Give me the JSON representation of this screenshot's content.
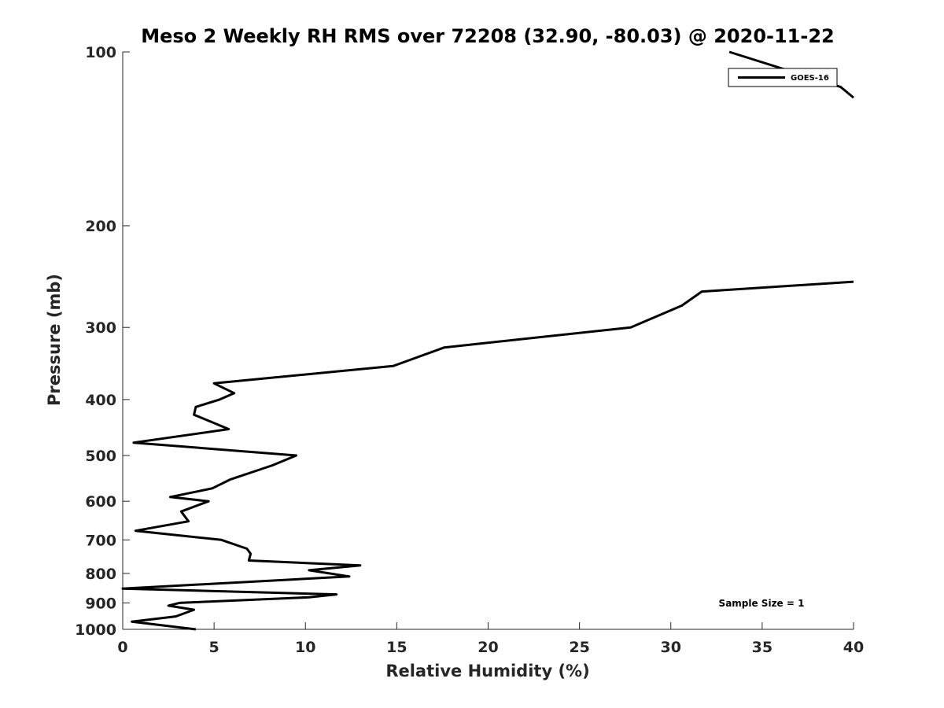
{
  "chart_data": {
    "type": "line",
    "title": "Meso 2 Weekly RH RMS over 72208 (32.90, -80.03) @ 2020-11-22",
    "xlabel": "Relative Humidity (%)",
    "ylabel": "Pressure (mb)",
    "xlim": [
      0,
      40
    ],
    "ylim": [
      100,
      1000
    ],
    "y_scale": "log",
    "y_reversed": true,
    "grid": false,
    "legend_position": "top-right",
    "x_ticks": [
      0,
      5,
      10,
      15,
      20,
      25,
      30,
      35,
      40
    ],
    "y_ticks": [
      100,
      200,
      300,
      400,
      500,
      600,
      700,
      800,
      900,
      1000
    ],
    "annotation": "Sample Size = 1",
    "series": [
      {
        "name": "GOES-16",
        "color": "#000000",
        "segments": [
          {
            "points": [
              [
                33.2,
                100
              ],
              [
                39.3,
                115
              ],
              [
                40,
                120
              ]
            ]
          },
          {
            "points": [
              [
                40,
                250
              ],
              [
                31.7,
                260
              ],
              [
                30.6,
                275
              ],
              [
                27.8,
                300
              ],
              [
                17.6,
                325
              ],
              [
                14.8,
                350
              ],
              [
                5.0,
                375
              ],
              [
                6.1,
                390
              ],
              [
                5.3,
                400
              ],
              [
                4.0,
                412
              ],
              [
                3.9,
                425
              ],
              [
                5.8,
                450
              ],
              [
                0.6,
                475
              ],
              [
                9.5,
                500
              ],
              [
                8.2,
                520
              ],
              [
                5.9,
                550
              ],
              [
                4.9,
                570
              ],
              [
                2.6,
                590
              ],
              [
                4.7,
                600
              ],
              [
                3.2,
                625
              ],
              [
                3.6,
                650
              ],
              [
                0.7,
                675
              ],
              [
                5.4,
                700
              ],
              [
                6.8,
                725
              ],
              [
                7.0,
                740
              ],
              [
                6.9,
                760
              ],
              [
                13.0,
                775
              ],
              [
                10.2,
                790
              ],
              [
                12.4,
                810
              ],
              [
                0.0,
                850
              ],
              [
                11.7,
                870
              ],
              [
                10.2,
                880
              ],
              [
                3.1,
                900
              ],
              [
                2.5,
                910
              ],
              [
                3.9,
                925
              ],
              [
                2.9,
                950
              ],
              [
                0.5,
                970
              ],
              [
                4.0,
                1000
              ]
            ]
          }
        ]
      }
    ]
  }
}
